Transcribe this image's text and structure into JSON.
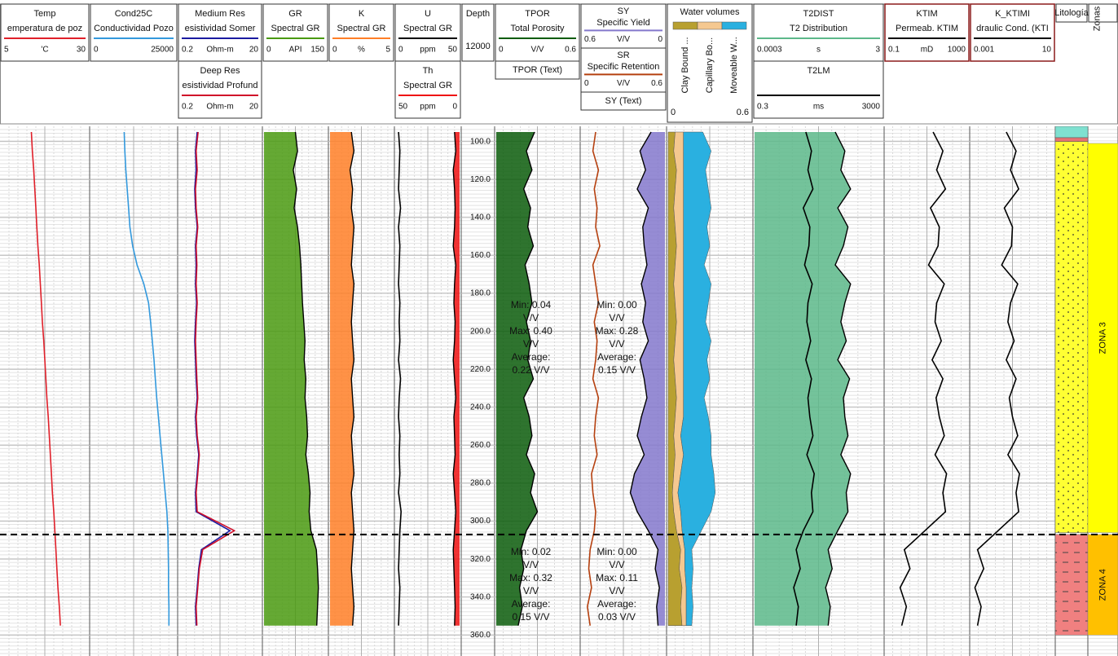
{
  "chart_data": {
    "type": "well-log",
    "depths": [
      95,
      105,
      115,
      125,
      135,
      145,
      155,
      165,
      175,
      185,
      195,
      205,
      215,
      225,
      235,
      245,
      255,
      265,
      275,
      285,
      295,
      305,
      315,
      325,
      335,
      345,
      355
    ],
    "ylim": [
      92,
      371
    ],
    "yticks": [
      {
        "value": 100,
        "label": "100.0"
      },
      {
        "value": 120,
        "label": "120.0"
      },
      {
        "value": 140,
        "label": "140.0"
      },
      {
        "value": 160,
        "label": "160.0"
      },
      {
        "value": 180,
        "label": "180.0"
      },
      {
        "value": 200,
        "label": "200.0"
      },
      {
        "value": 220,
        "label": "220.0"
      },
      {
        "value": 240,
        "label": "240.0"
      },
      {
        "value": 260,
        "label": "260.0"
      },
      {
        "value": 280,
        "label": "280.0"
      },
      {
        "value": 300,
        "label": "300.0"
      },
      {
        "value": 320,
        "label": "320.0"
      },
      {
        "value": 340,
        "label": "340.0"
      },
      {
        "value": 360,
        "label": "360.0"
      }
    ],
    "tracks": [
      {
        "headers": [
          {
            "name": "Temp",
            "subtitle": "emperatura de poz",
            "scale": [
              5,
              30
            ],
            "unit": "'C",
            "color": "#e0202a",
            "values": [
              13.6,
              13.9,
              14.3,
              14.6,
              14.9,
              15.2,
              15.5,
              15.9,
              16.2,
              16.5,
              16.8,
              17.2,
              17.5,
              17.8,
              18.1,
              18.5,
              18.8,
              19.1,
              19.4,
              19.7,
              20.1,
              20.4,
              20.7,
              21.0,
              21.3,
              21.7,
              22.0
            ]
          }
        ]
      },
      {
        "headers": [
          {
            "name": "Cond25C",
            "subtitle": "Conductividad Pozo",
            "scale": [
              0,
              25000
            ],
            "color": "#3399dd",
            "values": [
              9700,
              9900,
              10200,
              10600,
              11000,
              11400,
              12200,
              13500,
              15500,
              16900,
              17500,
              18000,
              18500,
              18900,
              19300,
              19800,
              20300,
              20800,
              21300,
              21800,
              22300,
              22600,
              22700,
              22800,
              22800,
              22900,
              22900
            ]
          }
        ]
      },
      {
        "headers": [
          {
            "name": "Medium Res",
            "subtitle": "esistividad Somer",
            "scale": [
              0.2,
              20
            ],
            "unit": "Ohm-m",
            "color": "#1a1aa0",
            "log": true,
            "values": [
              0.55,
              0.5,
              0.52,
              0.48,
              0.5,
              0.55,
              0.5,
              0.52,
              0.5,
              0.53,
              0.5,
              0.48,
              0.5,
              0.52,
              0.55,
              0.5,
              0.53,
              0.6,
              0.55,
              0.5,
              0.52,
              3.5,
              0.7,
              0.6,
              0.55,
              0.5,
              0.52
            ]
          },
          {
            "name": "Deep Res",
            "subtitle": "esistividad Profund",
            "scale": [
              0.2,
              20
            ],
            "unit": "Ohm-m",
            "color": "#d0102a",
            "log": true,
            "values": [
              0.58,
              0.52,
              0.55,
              0.5,
              0.52,
              0.57,
              0.52,
              0.54,
              0.52,
              0.55,
              0.52,
              0.5,
              0.52,
              0.54,
              0.57,
              0.52,
              0.55,
              0.62,
              0.57,
              0.52,
              0.55,
              4.5,
              0.75,
              0.62,
              0.57,
              0.52,
              0.54
            ]
          }
        ]
      },
      {
        "headers": [
          {
            "name": "GR",
            "subtitle": "Spectral GR",
            "scale": [
              0,
              150
            ],
            "unit": "API",
            "color": "#4a9a10",
            "fill": "left",
            "values": [
              75,
              80,
              70,
              78,
              72,
              80,
              85,
              88,
              90,
              92,
              95,
              98,
              96,
              100,
              98,
              102,
              104,
              100,
              106,
              110,
              108,
              112,
              125,
              128,
              130,
              128,
              126
            ]
          }
        ]
      },
      {
        "headers": [
          {
            "name": "K",
            "subtitle": "Spectral GR",
            "scale": [
              0,
              5
            ],
            "unit": "%",
            "color": "#ff7f27",
            "fill": "left",
            "values": [
              1.7,
              1.9,
              1.6,
              1.8,
              1.7,
              1.9,
              1.8,
              1.7,
              1.9,
              1.8,
              1.7,
              1.8,
              1.9,
              1.7,
              1.8,
              1.9,
              1.7,
              1.8,
              1.9,
              1.7,
              1.8,
              1.9,
              1.8,
              1.7,
              1.8,
              1.9,
              1.8
            ]
          }
        ]
      },
      {
        "headers": [
          {
            "name": "U",
            "subtitle": "Spectral GR",
            "scale": [
              0,
              50
            ],
            "unit": "ppm",
            "color": "#000000",
            "values": [
              2,
              3,
              2.5,
              2,
              3.5,
              2,
              3,
              2.5,
              2,
              3,
              2.5,
              3,
              2,
              3.5,
              2.5,
              2,
              3,
              2.5,
              3,
              2,
              4,
              3,
              2.5,
              2,
              3,
              2.5,
              2
            ]
          },
          {
            "name": "Th",
            "subtitle": "Spectral GR",
            "scale": [
              50,
              0
            ],
            "unit": "ppm",
            "color": "#ee1111",
            "fill": "right",
            "values": [
              4,
              3,
              5,
              4,
              3.5,
              4,
              5,
              3,
              4,
              4.5,
              3.5,
              4,
              5,
              4,
              3,
              4.5,
              4,
              3.5,
              5,
              4,
              3,
              4,
              5,
              4.5,
              4,
              3.5,
              4
            ]
          }
        ]
      },
      {
        "depth": true,
        "headers": [
          {
            "name": "Depth",
            "subtitle": "12000"
          }
        ]
      },
      {
        "headers": [
          {
            "name": "TPOR",
            "subtitle": "Total Porosity",
            "scale": [
              0,
              0.6
            ],
            "unit": "V/V",
            "color": "#0a5c0a",
            "fill": "left",
            "values": [
              0.28,
              0.22,
              0.26,
              0.2,
              0.25,
              0.23,
              0.27,
              0.21,
              0.24,
              0.26,
              0.22,
              0.25,
              0.23,
              0.27,
              0.2,
              0.24,
              0.26,
              0.22,
              0.28,
              0.25,
              0.3,
              0.22,
              0.18,
              0.2,
              0.17,
              0.19,
              0.16
            ]
          },
          {
            "name": "TPOR (Text)"
          }
        ]
      },
      {
        "headers": [
          {
            "name": "SY",
            "subtitle": "Specific Yield",
            "scale": [
              0.6,
              0
            ],
            "unit": "V/V",
            "color": "#8478cc",
            "fill": "right",
            "values": [
              0.1,
              0.18,
              0.14,
              0.2,
              0.12,
              0.16,
              0.15,
              0.13,
              0.17,
              0.14,
              0.16,
              0.12,
              0.18,
              0.15,
              0.13,
              0.17,
              0.2,
              0.15,
              0.22,
              0.25,
              0.2,
              0.12,
              0.05,
              0.07,
              0.04,
              0.06,
              0.05
            ]
          },
          {
            "name": "SR",
            "subtitle": "Specific Retention",
            "scale": [
              0,
              0.6
            ],
            "unit": "V/V",
            "color": "#b5400f",
            "values": [
              0.1,
              0.08,
              0.12,
              0.09,
              0.11,
              0.1,
              0.13,
              0.08,
              0.1,
              0.12,
              0.09,
              0.11,
              0.1,
              0.08,
              0.12,
              0.1,
              0.09,
              0.11,
              0.07,
              0.08,
              0.1,
              0.09,
              0.06,
              0.05,
              0.07,
              0.04,
              0.06
            ]
          },
          {
            "name": "SY (Text)"
          }
        ]
      },
      {
        "stacked": true,
        "headers": [
          {
            "name": "Water volumes",
            "scale": [
              0,
              0.6
            ],
            "series": [
              {
                "name": "Clay Bound ...",
                "color": "#b8a030",
                "values": [
                  0.05,
                  0.04,
                  0.06,
                  0.05,
                  0.04,
                  0.05,
                  0.06,
                  0.05,
                  0.04,
                  0.05,
                  0.06,
                  0.05,
                  0.04,
                  0.05,
                  0.06,
                  0.05,
                  0.04,
                  0.05,
                  0.04,
                  0.03,
                  0.04,
                  0.06,
                  0.09,
                  0.08,
                  0.1,
                  0.09,
                  0.1
                ]
              },
              {
                "name": "Capillary Bo...",
                "color": "#f5c890",
                "values": [
                  0.06,
                  0.07,
                  0.05,
                  0.06,
                  0.07,
                  0.06,
                  0.05,
                  0.06,
                  0.07,
                  0.06,
                  0.05,
                  0.06,
                  0.07,
                  0.06,
                  0.05,
                  0.06,
                  0.05,
                  0.06,
                  0.05,
                  0.04,
                  0.05,
                  0.04,
                  0.03,
                  0.04,
                  0.03,
                  0.04,
                  0.03
                ]
              },
              {
                "name": "Moveable W...",
                "color": "#2ab0e0",
                "values": [
                  0.14,
                  0.2,
                  0.16,
                  0.18,
                  0.2,
                  0.17,
                  0.19,
                  0.15,
                  0.2,
                  0.18,
                  0.16,
                  0.2,
                  0.17,
                  0.19,
                  0.15,
                  0.18,
                  0.22,
                  0.2,
                  0.24,
                  0.27,
                  0.22,
                  0.14,
                  0.05,
                  0.06,
                  0.04,
                  0.05,
                  0.04
                ]
              }
            ]
          }
        ]
      },
      {
        "headers": [
          {
            "name": "T2DIST",
            "subtitle": "T2 Distribution",
            "scale": [
              0.0003,
              3
            ],
            "unit": "s",
            "color": "#5cb88a",
            "fill": "left",
            "log": true,
            "values": [
              0.1,
              0.2,
              0.15,
              0.3,
              0.12,
              0.25,
              0.18,
              0.1,
              0.3,
              0.2,
              0.15,
              0.22,
              0.12,
              0.28,
              0.18,
              0.2,
              0.25,
              0.15,
              0.3,
              0.22,
              0.25,
              0.12,
              0.06,
              0.08,
              0.05,
              0.07,
              0.06
            ]
          },
          {
            "name": "T2LM",
            "scale": [
              0.3,
              3000
            ],
            "unit": "ms",
            "color": "#000000",
            "log": true,
            "values": [
              12,
              18,
              14,
              20,
              10,
              16,
              15,
              11,
              19,
              14,
              13,
              17,
              12,
              18,
              14,
              16,
              20,
              13,
              22,
              18,
              20,
              10,
              6,
              8,
              5,
              7,
              6
            ]
          }
        ]
      },
      {
        "headers": [
          {
            "name": "KTIM",
            "subtitle": "Permeab. KTIM",
            "scale": [
              0.1,
              1000
            ],
            "unit": "mD",
            "color": "#000000",
            "log": true,
            "values": [
              20,
              60,
              30,
              80,
              15,
              40,
              35,
              12,
              70,
              30,
              25,
              50,
              18,
              60,
              28,
              40,
              70,
              25,
              90,
              60,
              80,
              8,
              0.8,
              1.5,
              0.5,
              1,
              0.6
            ]
          }
        ]
      },
      {
        "headers": [
          {
            "name": "K_KTIMI",
            "subtitle": "draulic Cond. (KTI",
            "scale": [
              0.001,
              10
            ],
            "color": "#000000",
            "log": true,
            "values": [
              0.05,
              0.15,
              0.08,
              0.2,
              0.04,
              0.1,
              0.09,
              0.03,
              0.18,
              0.08,
              0.06,
              0.12,
              0.05,
              0.15,
              0.07,
              0.1,
              0.18,
              0.06,
              0.22,
              0.15,
              0.2,
              0.02,
              0.002,
              0.004,
              0.0015,
              0.003,
              0.002
            ]
          }
        ]
      },
      {
        "lithology": [
          {
            "top": 92,
            "bottom": 98,
            "color": "#7fe0d0"
          },
          {
            "top": 98,
            "bottom": 100,
            "color": "#e57373"
          },
          {
            "top": 100,
            "bottom": 306,
            "color": "#ffff33",
            "pattern": "dots"
          },
          {
            "top": 307,
            "bottom": 360,
            "color": "#f08080",
            "pattern": "lines"
          }
        ],
        "headers": [
          {
            "name": "Litología"
          }
        ]
      },
      {
        "zonas": true,
        "headers": [
          {
            "name": "Zonas"
          }
        ]
      }
    ],
    "zones": [
      {
        "name": "ZONA 3",
        "top": 101,
        "bottom": 306,
        "color": "#ffff00",
        "tpor_stats": [
          "Min: 0.04",
          "V/V",
          "Max: 0.40",
          "V/V",
          "Average:",
          "0.22 V/V"
        ],
        "sy_stats": [
          "Min: 0.00",
          "V/V",
          "Max: 0.28",
          "V/V",
          "Average:",
          "0.15 V/V"
        ]
      },
      {
        "name": "ZONA 4",
        "top": 307,
        "bottom": 360,
        "color": "#ffc000",
        "tpor_stats": [
          "Min: 0.02",
          "V/V",
          "Max: 0.32",
          "V/V",
          "Average:",
          "0.15 V/V"
        ],
        "sy_stats": [
          "Min: 0.00",
          "V/V",
          "Max: 0.11",
          "V/V",
          "Average:",
          "0.03 V/V"
        ]
      }
    ]
  }
}
